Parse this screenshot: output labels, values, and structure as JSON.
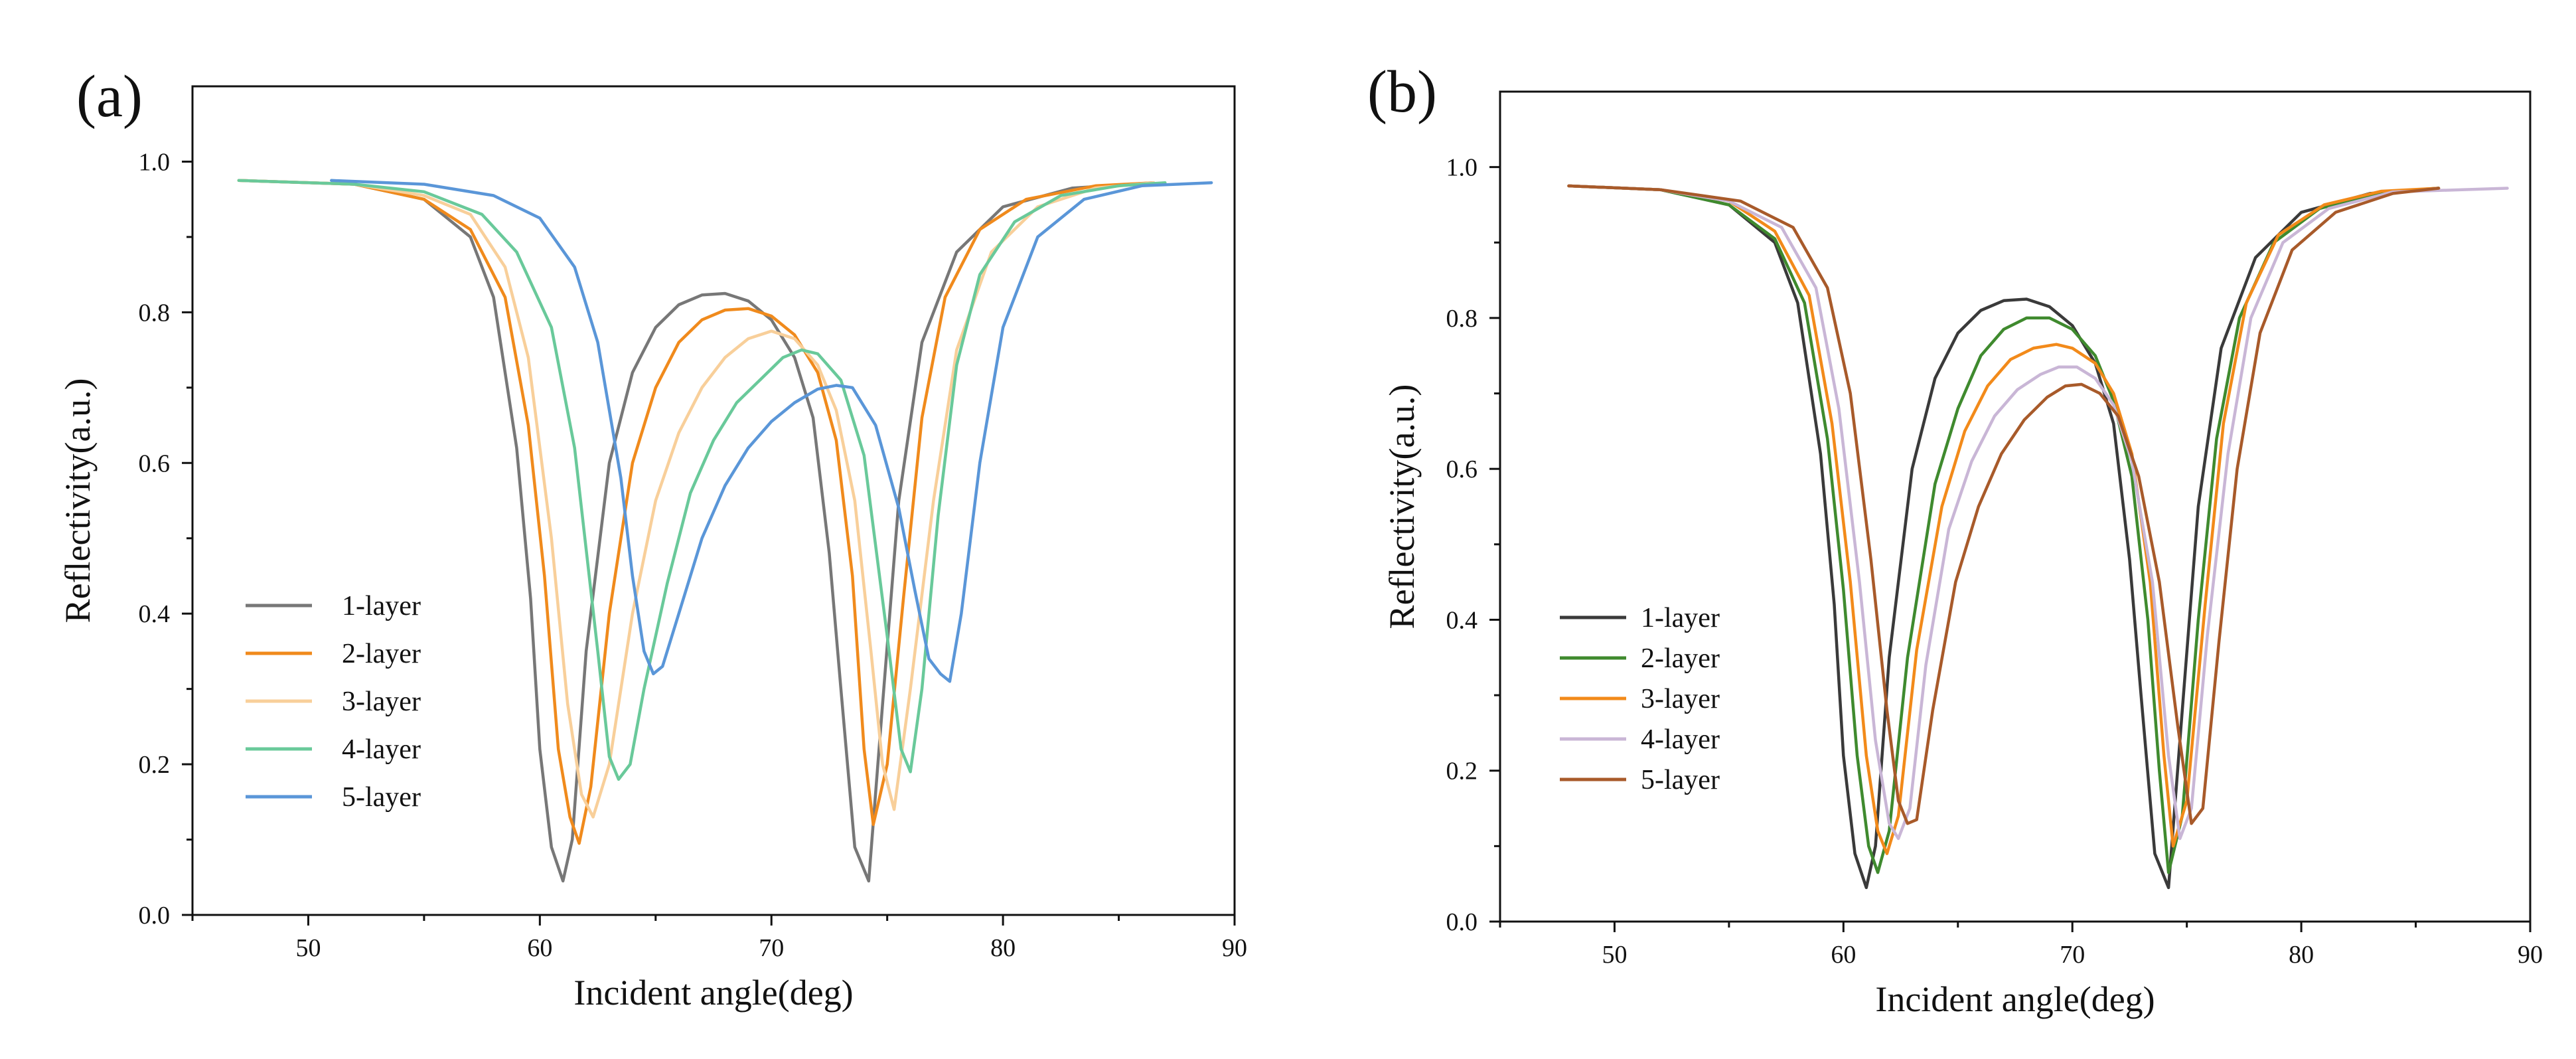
{
  "chart_data": [
    {
      "type": "line",
      "panel_label": "(a)",
      "xlabel": "Incident angle(deg)",
      "ylabel": "Reflectivity(a.u.)",
      "xlim": [
        45,
        90
      ],
      "ylim": [
        0,
        1.1
      ],
      "x_ticks": [
        50,
        60,
        70,
        80,
        90
      ],
      "y_ticks": [
        0.0,
        0.2,
        0.4,
        0.6,
        0.8,
        1.0
      ],
      "x_tick_labels": [
        "50",
        "60",
        "70",
        "80",
        "90"
      ],
      "y_tick_labels": [
        "0.0",
        "0.2",
        "0.4",
        "0.6",
        "0.8",
        "1.0"
      ],
      "legend_position": "lower-left",
      "grid": false,
      "series": [
        {
          "name": "1-layer",
          "color": "#777777",
          "x": [
            47.0,
            52.0,
            55.0,
            57.0,
            58.0,
            59.0,
            59.6,
            60.0,
            60.5,
            61.0,
            61.4,
            62.0,
            63.0,
            64.0,
            65.0,
            66.0,
            67.0,
            68.0,
            69.0,
            70.0,
            71.0,
            71.8,
            72.5,
            73.0,
            73.6,
            74.2,
            74.8,
            75.5,
            76.5,
            78.0,
            80.0,
            83.0,
            86.5
          ],
          "y": [
            0.975,
            0.97,
            0.95,
            0.9,
            0.82,
            0.62,
            0.42,
            0.22,
            0.09,
            0.045,
            0.1,
            0.35,
            0.6,
            0.72,
            0.78,
            0.81,
            0.823,
            0.825,
            0.815,
            0.79,
            0.74,
            0.66,
            0.48,
            0.3,
            0.09,
            0.045,
            0.28,
            0.55,
            0.76,
            0.88,
            0.94,
            0.965,
            0.972
          ]
        },
        {
          "name": "2-layer",
          "color": "#f08a1c",
          "x": [
            47.0,
            52.0,
            55.0,
            57.0,
            58.5,
            59.5,
            60.2,
            60.8,
            61.3,
            61.7,
            62.2,
            63.0,
            64.0,
            65.0,
            66.0,
            67.0,
            68.0,
            69.0,
            70.0,
            71.0,
            72.0,
            72.8,
            73.5,
            74.0,
            74.4,
            75.0,
            75.7,
            76.5,
            77.5,
            79.0,
            81.0,
            84.0,
            86.5
          ],
          "y": [
            0.975,
            0.97,
            0.95,
            0.91,
            0.82,
            0.65,
            0.45,
            0.22,
            0.13,
            0.095,
            0.17,
            0.4,
            0.6,
            0.7,
            0.76,
            0.79,
            0.803,
            0.805,
            0.795,
            0.77,
            0.72,
            0.63,
            0.45,
            0.22,
            0.12,
            0.2,
            0.42,
            0.66,
            0.82,
            0.91,
            0.95,
            0.968,
            0.972
          ]
        },
        {
          "name": "3-layer",
          "color": "#f8cf9a",
          "x": [
            47.0,
            52.0,
            55.0,
            57.0,
            58.5,
            59.5,
            60.5,
            61.2,
            61.8,
            62.3,
            63.0,
            64.0,
            65.0,
            66.0,
            67.0,
            68.0,
            69.0,
            70.0,
            71.0,
            72.0,
            72.8,
            73.6,
            74.3,
            74.8,
            75.3,
            76.0,
            77.0,
            78.0,
            79.5,
            81.5,
            84.0,
            86.5
          ],
          "y": [
            0.975,
            0.97,
            0.955,
            0.93,
            0.86,
            0.74,
            0.5,
            0.28,
            0.16,
            0.13,
            0.2,
            0.4,
            0.55,
            0.64,
            0.7,
            0.74,
            0.765,
            0.775,
            0.765,
            0.73,
            0.67,
            0.55,
            0.35,
            0.2,
            0.14,
            0.3,
            0.55,
            0.75,
            0.88,
            0.94,
            0.965,
            0.972
          ]
        },
        {
          "name": "4-layer",
          "color": "#69c99a",
          "x": [
            47.0,
            52.0,
            55.0,
            57.5,
            59.0,
            60.5,
            61.5,
            62.5,
            63.0,
            63.4,
            63.9,
            64.5,
            65.5,
            66.5,
            67.5,
            68.5,
            69.5,
            70.5,
            71.3,
            72.0,
            73.0,
            74.0,
            75.0,
            75.6,
            76.0,
            76.5,
            77.2,
            78.0,
            79.0,
            80.5,
            82.5,
            85.0,
            87.0
          ],
          "y": [
            0.975,
            0.97,
            0.96,
            0.93,
            0.88,
            0.78,
            0.62,
            0.35,
            0.21,
            0.18,
            0.2,
            0.3,
            0.44,
            0.56,
            0.63,
            0.68,
            0.71,
            0.74,
            0.75,
            0.745,
            0.71,
            0.61,
            0.37,
            0.22,
            0.19,
            0.3,
            0.53,
            0.73,
            0.85,
            0.92,
            0.955,
            0.968,
            0.972
          ]
        },
        {
          "name": "5-layer",
          "color": "#5a96d8",
          "x": [
            51.0,
            55.0,
            58.0,
            60.0,
            61.5,
            62.5,
            63.5,
            64.0,
            64.5,
            64.9,
            65.3,
            66.0,
            67.0,
            68.0,
            69.0,
            70.0,
            71.0,
            72.0,
            72.8,
            73.5,
            74.5,
            75.5,
            76.2,
            76.8,
            77.3,
            77.7,
            78.2,
            79.0,
            80.0,
            81.5,
            83.5,
            86.0,
            89.0
          ],
          "y": [
            0.975,
            0.97,
            0.955,
            0.925,
            0.86,
            0.76,
            0.58,
            0.45,
            0.35,
            0.32,
            0.33,
            0.4,
            0.5,
            0.57,
            0.62,
            0.655,
            0.68,
            0.698,
            0.703,
            0.7,
            0.65,
            0.54,
            0.43,
            0.34,
            0.32,
            0.31,
            0.4,
            0.6,
            0.78,
            0.9,
            0.95,
            0.968,
            0.972
          ]
        }
      ]
    },
    {
      "type": "line",
      "panel_label": "(b)",
      "xlabel": "Incident angle(deg)",
      "ylabel": "Reflectivity(a.u.)",
      "xlim": [
        45,
        90
      ],
      "ylim": [
        0,
        1.1
      ],
      "x_ticks": [
        50,
        60,
        70,
        80,
        90
      ],
      "y_ticks": [
        0.0,
        0.2,
        0.4,
        0.6,
        0.8,
        1.0
      ],
      "x_tick_labels": [
        "50",
        "60",
        "70",
        "80",
        "90"
      ],
      "y_tick_labels": [
        "0.0",
        "0.2",
        "0.4",
        "0.6",
        "0.8",
        "1.0"
      ],
      "legend_position": "lower-left",
      "grid": false,
      "series": [
        {
          "name": "1-layer",
          "color": "#3a3a3a",
          "x": [
            48.0,
            52.0,
            55.0,
            57.0,
            58.0,
            59.0,
            59.6,
            60.0,
            60.5,
            61.0,
            61.4,
            62.0,
            63.0,
            64.0,
            65.0,
            66.0,
            67.0,
            68.0,
            69.0,
            70.0,
            71.0,
            71.8,
            72.5,
            73.0,
            73.6,
            74.2,
            74.8,
            75.5,
            76.5,
            78.0,
            80.0,
            83.0,
            86.0
          ],
          "y": [
            0.975,
            0.97,
            0.95,
            0.9,
            0.82,
            0.62,
            0.42,
            0.22,
            0.09,
            0.045,
            0.1,
            0.35,
            0.6,
            0.72,
            0.78,
            0.81,
            0.823,
            0.825,
            0.815,
            0.79,
            0.74,
            0.66,
            0.48,
            0.3,
            0.09,
            0.045,
            0.28,
            0.55,
            0.76,
            0.88,
            0.94,
            0.965,
            0.972
          ]
        },
        {
          "name": "2-layer",
          "color": "#3f8a2e",
          "x": [
            48.0,
            52.0,
            55.0,
            57.0,
            58.3,
            59.3,
            60.0,
            60.6,
            61.1,
            61.5,
            62.0,
            62.8,
            64.0,
            65.0,
            66.0,
            67.0,
            68.0,
            69.0,
            70.0,
            71.0,
            71.8,
            72.6,
            73.3,
            73.8,
            74.2,
            74.8,
            75.5,
            76.3,
            77.3,
            78.8,
            80.8,
            83.5,
            86.0
          ],
          "y": [
            0.975,
            0.97,
            0.95,
            0.905,
            0.82,
            0.64,
            0.44,
            0.22,
            0.1,
            0.065,
            0.12,
            0.35,
            0.58,
            0.68,
            0.75,
            0.785,
            0.8,
            0.8,
            0.785,
            0.75,
            0.69,
            0.59,
            0.4,
            0.2,
            0.065,
            0.14,
            0.4,
            0.64,
            0.8,
            0.9,
            0.945,
            0.967,
            0.972
          ]
        },
        {
          "name": "3-layer",
          "color": "#f28a1a",
          "x": [
            48.0,
            52.0,
            55.0,
            57.0,
            58.5,
            59.5,
            60.3,
            61.0,
            61.5,
            61.9,
            62.4,
            63.2,
            64.3,
            65.3,
            66.3,
            67.3,
            68.3,
            69.3,
            70.0,
            71.0,
            71.8,
            72.6,
            73.4,
            74.0,
            74.4,
            75.0,
            75.8,
            76.6,
            77.6,
            79.0,
            81.0,
            83.5,
            86.0
          ],
          "y": [
            0.975,
            0.97,
            0.955,
            0.915,
            0.83,
            0.66,
            0.45,
            0.22,
            0.12,
            0.09,
            0.14,
            0.36,
            0.55,
            0.65,
            0.71,
            0.745,
            0.76,
            0.765,
            0.76,
            0.74,
            0.7,
            0.62,
            0.45,
            0.22,
            0.1,
            0.16,
            0.42,
            0.66,
            0.82,
            0.91,
            0.95,
            0.968,
            0.972
          ]
        },
        {
          "name": "4-layer",
          "color": "#c9b6d6",
          "x": [
            48.0,
            52.0,
            55.0,
            57.3,
            58.8,
            59.8,
            60.7,
            61.4,
            62.0,
            62.4,
            62.9,
            63.6,
            64.6,
            65.6,
            66.6,
            67.6,
            68.6,
            69.4,
            70.2,
            71.0,
            71.8,
            72.6,
            73.5,
            74.2,
            74.7,
            75.2,
            75.9,
            76.8,
            77.8,
            79.2,
            81.2,
            84.0,
            89.0
          ],
          "y": [
            0.975,
            0.97,
            0.955,
            0.92,
            0.84,
            0.68,
            0.45,
            0.24,
            0.13,
            0.11,
            0.15,
            0.34,
            0.52,
            0.61,
            0.67,
            0.705,
            0.725,
            0.735,
            0.735,
            0.72,
            0.685,
            0.61,
            0.45,
            0.22,
            0.11,
            0.15,
            0.38,
            0.62,
            0.8,
            0.9,
            0.945,
            0.967,
            0.972
          ]
        },
        {
          "name": "5-layer",
          "color": "#a85a2a",
          "x": [
            48.0,
            52.0,
            55.5,
            57.8,
            59.3,
            60.3,
            61.2,
            61.9,
            62.4,
            62.8,
            63.2,
            63.9,
            64.9,
            65.9,
            66.9,
            67.9,
            68.9,
            69.7,
            70.4,
            71.2,
            72.0,
            72.9,
            73.8,
            74.6,
            75.2,
            75.7,
            76.4,
            77.2,
            78.2,
            79.6,
            81.5,
            84.0,
            86.0
          ],
          "y": [
            0.975,
            0.97,
            0.955,
            0.92,
            0.84,
            0.7,
            0.48,
            0.28,
            0.16,
            0.13,
            0.135,
            0.28,
            0.45,
            0.55,
            0.62,
            0.665,
            0.695,
            0.71,
            0.712,
            0.7,
            0.67,
            0.59,
            0.45,
            0.26,
            0.13,
            0.15,
            0.37,
            0.6,
            0.78,
            0.89,
            0.94,
            0.965,
            0.972
          ]
        }
      ]
    }
  ]
}
